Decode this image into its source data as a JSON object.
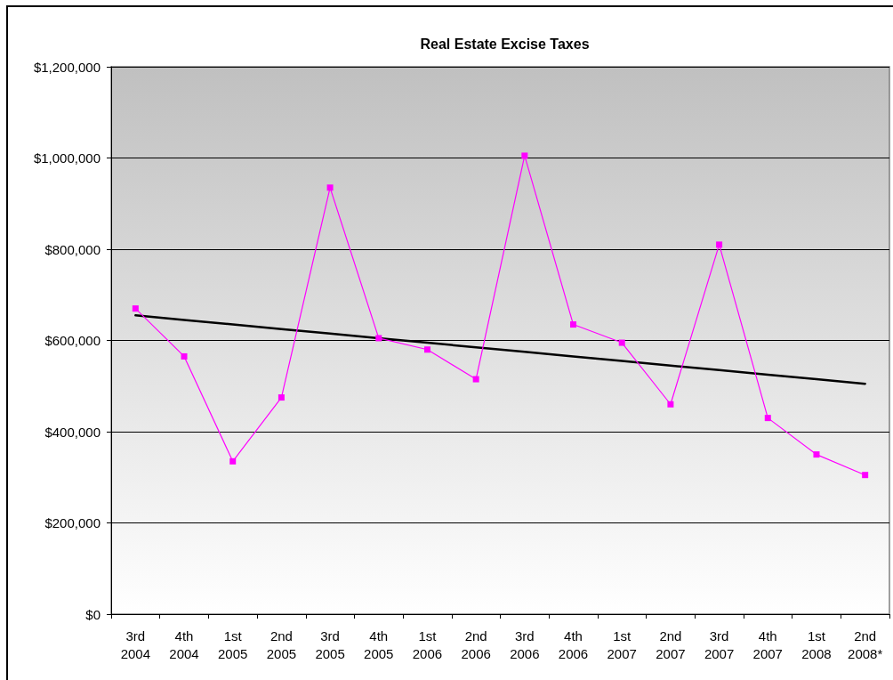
{
  "chart_data": {
    "type": "line",
    "title": "Real Estate Excise Taxes",
    "categories": [
      "3rd 2004",
      "4th 2004",
      "1st 2005",
      "2nd 2005",
      "3rd 2005",
      "4th 2005",
      "1st 2006",
      "2nd 2006",
      "3rd 2006",
      "4th 2006",
      "1st 2007",
      "2nd 2007",
      "3rd 2007",
      "4th 2007",
      "1st 2008",
      "2nd 2008*"
    ],
    "series": [
      {
        "color": "#ff00ff",
        "values": [
          670000,
          565000,
          335000,
          475000,
          935000,
          605000,
          580000,
          515000,
          1005000,
          635000,
          595000,
          460000,
          810000,
          430000,
          350000,
          305000
        ]
      },
      {
        "type": "line",
        "color": "#000000",
        "marker": "none",
        "values": [
          655000,
          645000,
          635000,
          625000,
          615000,
          605000,
          595000,
          585000,
          575000,
          565000,
          555000,
          545000,
          535000,
          525000,
          515000,
          505000
        ]
      }
    ],
    "ylim": [
      0,
      1200000
    ],
    "yticks": [
      {
        "value": 0,
        "label": "$0"
      },
      {
        "value": 200000,
        "label": "$200,000"
      },
      {
        "value": 400000,
        "label": "$400,000"
      },
      {
        "value": 600000,
        "label": "$600,000"
      },
      {
        "value": 800000,
        "label": "$800,000"
      },
      {
        "value": 1000000,
        "label": "$1,000,000"
      },
      {
        "value": 1200000,
        "label": "$1,200,000"
      }
    ],
    "grid": "y",
    "marker": "square",
    "line_style": "solid"
  }
}
